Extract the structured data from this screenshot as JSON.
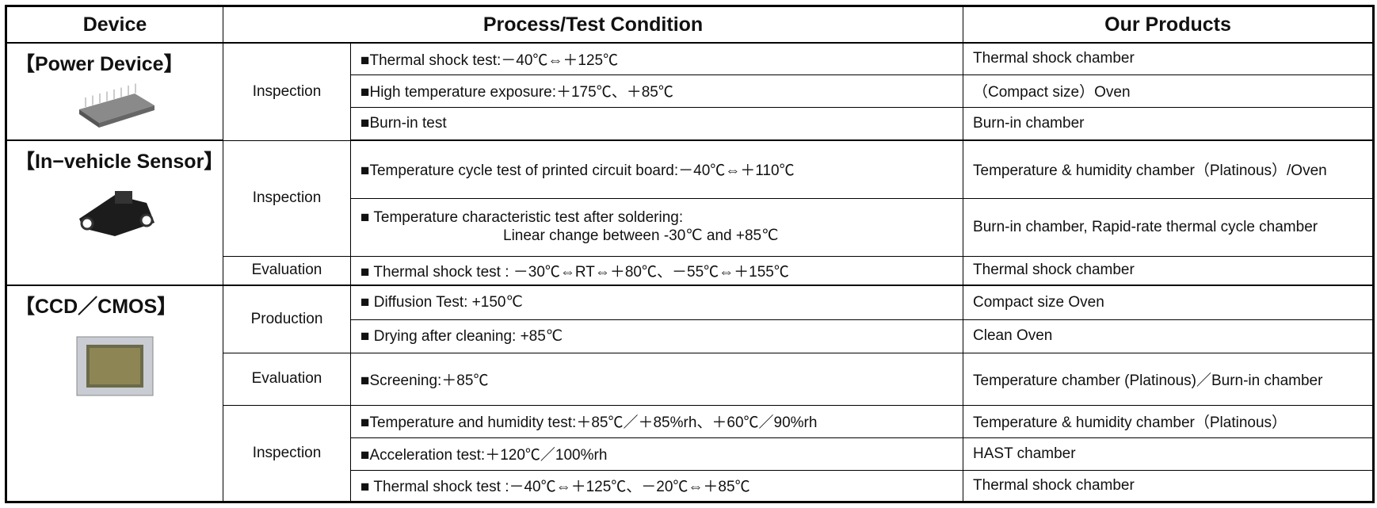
{
  "header": [
    "Device",
    "Process/Test Condition",
    "Our Products"
  ],
  "groups": [
    {
      "device": "【Power Device】",
      "stages": [
        {
          "stage": "Inspection",
          "rows": [
            {
              "condition": [
                "■Thermal shock test:－40℃⇔＋125℃"
              ],
              "product": "Thermal shock chamber"
            },
            {
              "condition": [
                "■High temperature exposure:＋175℃、＋85℃"
              ],
              "product": "（Compact size）Oven"
            },
            {
              "condition": [
                "■Burn-in test"
              ],
              "product": "Burn-in chamber"
            }
          ]
        }
      ]
    },
    {
      "device": "【In−vehicle Sensor】",
      "stages": [
        {
          "stage": "Inspection",
          "rows": [
            {
              "condition": [
                "■Temperature cycle test of printed circuit board:－40℃⇔＋110℃"
              ],
              "product": "Temperature & humidity chamber（Platinous）/Oven"
            },
            {
              "condition": [
                "■ Temperature characteristic test after soldering:",
                "Linear change between -30℃ and +85℃"
              ],
              "product": "Burn-in chamber, Rapid-rate thermal cycle chamber"
            }
          ]
        },
        {
          "stage": "Evaluation",
          "rows": [
            {
              "condition": [
                "■ Thermal shock test : －30℃⇔RT⇔＋80℃、－55℃⇔＋155℃"
              ],
              "product": "Thermal shock chamber"
            }
          ]
        }
      ]
    },
    {
      "device": "【CCD／CMOS】",
      "stages": [
        {
          "stage": "Production",
          "rows": [
            {
              "condition": [
                "■ Diffusion Test: +150℃"
              ],
              "product": "Compact size Oven"
            },
            {
              "condition": [
                "■ Drying after cleaning: +85℃"
              ],
              "product": "Clean Oven"
            }
          ]
        },
        {
          "stage": "Evaluation",
          "rows": [
            {
              "condition": [
                "■Screening:＋85℃"
              ],
              "product": "Temperature chamber (Platinous)／Burn-in chamber"
            }
          ]
        },
        {
          "stage": "Inspection",
          "rows": [
            {
              "condition": [
                "■Temperature and humidity test:＋85℃／＋85%rh、＋60℃／90%rh"
              ],
              "product": "Temperature & humidity chamber（Platinous）"
            },
            {
              "condition": [
                "■Acceleration test:＋120℃／100%rh"
              ],
              "product": "HAST chamber"
            },
            {
              "condition": [
                "■ Thermal shock test :－40℃⇔＋125℃、－20℃⇔＋85℃"
              ],
              "product": "Thermal shock chamber"
            }
          ]
        }
      ]
    }
  ]
}
